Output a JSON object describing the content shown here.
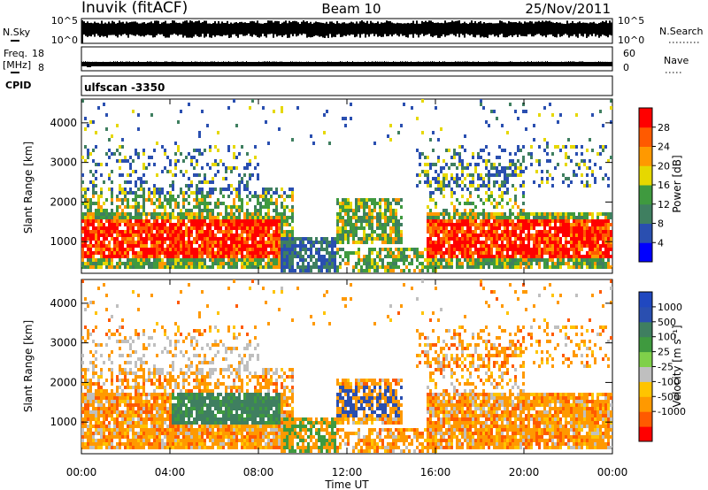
{
  "header": {
    "station": "Inuvik (fitACF)",
    "beam": "Beam 10",
    "date": "25/Nov/2011"
  },
  "top_panels": {
    "nsky_label": "N.Sky",
    "nsky_ticks": [
      "10^5",
      "10^0"
    ],
    "nsearch_label": "N.Search",
    "nsearch_ticks": [
      "10^5",
      "10^0"
    ],
    "freq_label": "Freq.",
    "freq_unit": "[MHz]",
    "freq_ticks": [
      "18",
      "8"
    ],
    "nave_label": "Nave",
    "nave_ticks": [
      "60",
      "0"
    ],
    "cpid_label": "CPID",
    "cpid_value": "ulfscan -3350"
  },
  "colors": {
    "power": [
      "#0000ff",
      "#2a4fb0",
      "#3f7f60",
      "#3f9a3f",
      "#e6d800",
      "#ff9900",
      "#ff5a00",
      "#ff0000"
    ],
    "velocity": [
      "#ff0000",
      "#ff5a00",
      "#ff9900",
      "#ffc400",
      "#bfbfbf",
      "#7fd04a",
      "#3f9a3f",
      "#3f7f60",
      "#2a4fb0",
      "#2048c0"
    ]
  },
  "chart_data": [
    {
      "type": "heatmap",
      "name": "power-panel",
      "ylabel": "Slant Range [km]",
      "yticks": [
        "4000",
        "3000",
        "2000",
        "1000"
      ],
      "ylim": [
        200,
        4600
      ],
      "xlim": [
        0,
        24
      ],
      "colorbar_label": "Power [dB]",
      "colorbar_ticks": [
        "28",
        "24",
        "20",
        "16",
        "12",
        "8",
        "4"
      ],
      "colorbar_range": [
        0,
        32
      ]
    },
    {
      "type": "heatmap",
      "name": "velocity-panel",
      "ylabel": "Slant Range [km]",
      "yticks": [
        "4000",
        "3000",
        "2000",
        "1000"
      ],
      "ylim": [
        200,
        4600
      ],
      "xlim": [
        0,
        24
      ],
      "colorbar_label": "Velocity [m s⁻¹]",
      "colorbar_ticks": [
        "1000",
        "500",
        "100",
        "25",
        "-25",
        "-100",
        "-500",
        "-1000"
      ]
    }
  ],
  "xaxis": {
    "label": "Time UT",
    "ticks": [
      "00:00",
      "04:00",
      "08:00",
      "12:00",
      "16:00",
      "20:00",
      "00:00"
    ]
  }
}
